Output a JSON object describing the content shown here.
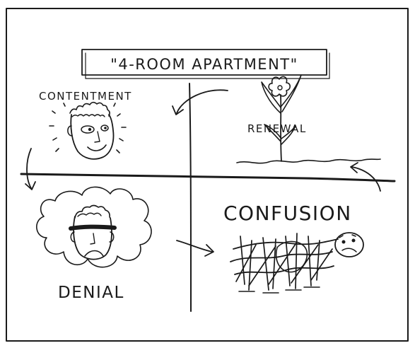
{
  "title": "\"4-ROOM APARTMENT\"",
  "rooms": {
    "contentment": {
      "label": "CONTENTMENT"
    },
    "renewal": {
      "label": "RENEWAL"
    },
    "denial": {
      "label": "DENIAL"
    },
    "confusion": {
      "label": "CONFUSION"
    }
  },
  "icons": {
    "contentment": "smiling-face-icon",
    "renewal": "flower-icon",
    "denial": "blindfolded-face-icon",
    "confusion": "tangled-scribble-figure-icon"
  },
  "colors": {
    "ink": "#1a1a1a",
    "paper": "#ffffff"
  }
}
